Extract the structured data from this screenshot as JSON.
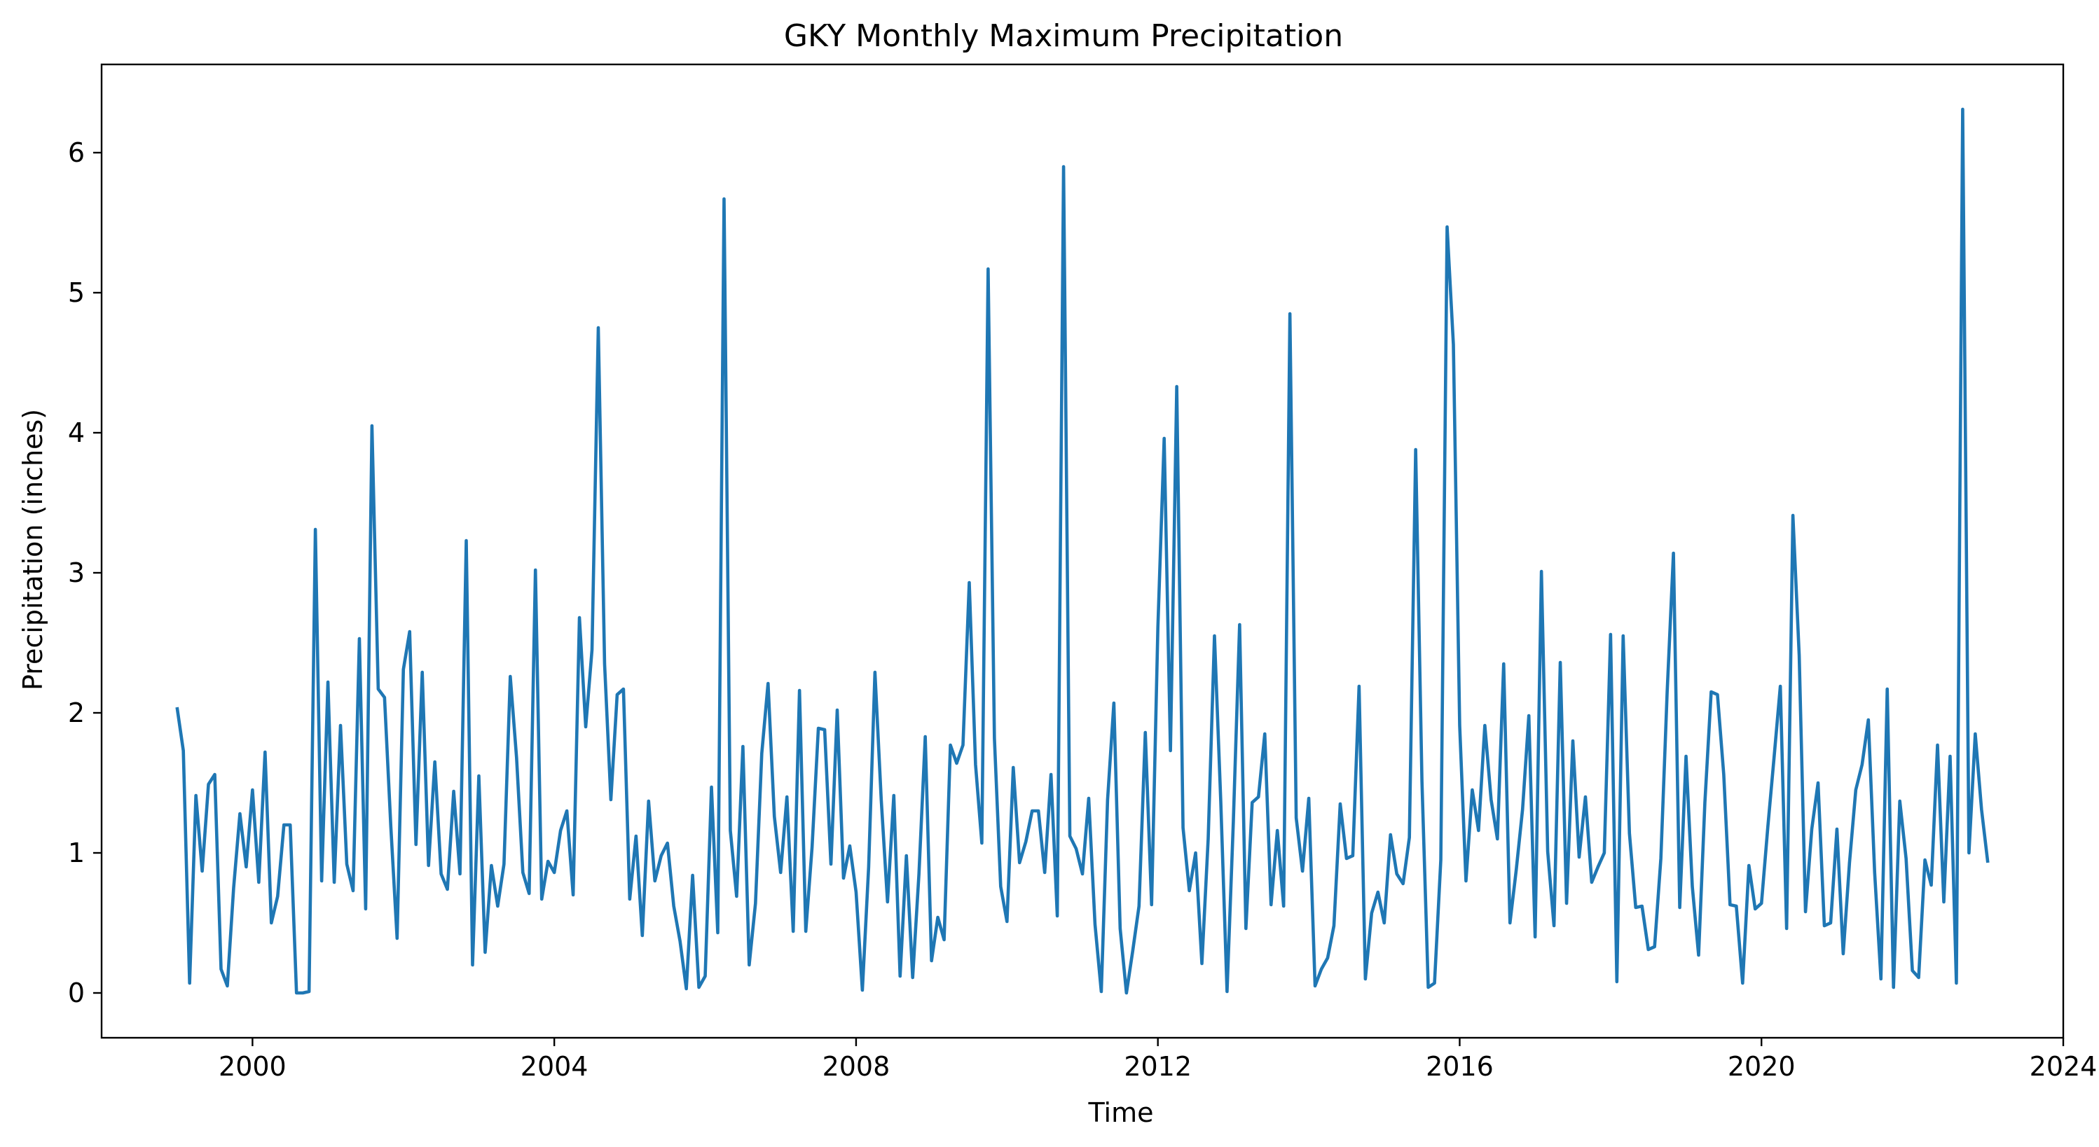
{
  "chart_data": {
    "type": "line",
    "title": "GKY Monthly Maximum Precipitation",
    "xlabel": "Time",
    "ylabel": "Precipitation (inches)",
    "xlim": [
      1998.0,
      2024.0
    ],
    "ylim": [
      -0.32,
      6.63
    ],
    "x_ticks": [
      2000,
      2004,
      2008,
      2012,
      2016,
      2020,
      2024
    ],
    "y_ticks": [
      0,
      1,
      2,
      3,
      4,
      5,
      6
    ],
    "grid": false,
    "color": "#1f77b4",
    "start": "1999-01",
    "frequency": "monthly",
    "end": "2022-12",
    "series": [
      {
        "values": [
          2.04,
          1.73,
          0.07,
          1.41,
          0.87,
          1.49,
          1.56,
          0.17,
          0.05,
          0.75,
          1.28,
          0.9,
          1.45,
          0.79,
          1.72,
          0.5,
          0.69,
          1.2,
          1.2,
          0.0,
          0.0,
          0.01,
          3.31,
          0.8,
          2.22,
          0.79,
          1.91,
          0.92,
          0.73,
          2.53,
          0.6,
          4.05,
          2.17,
          2.11,
          1.19,
          0.39,
          2.31,
          2.58,
          1.06,
          2.29,
          0.91,
          1.65,
          0.85,
          0.74,
          1.44,
          0.85,
          3.23,
          0.2,
          1.55,
          0.29,
          0.91,
          0.62,
          0.92,
          2.26,
          1.68,
          0.86,
          0.71,
          3.02,
          0.67,
          0.94,
          0.86,
          1.16,
          1.3,
          0.7,
          2.68,
          1.9,
          2.45,
          4.75,
          2.35,
          1.38,
          2.13,
          2.17,
          0.67,
          1.12,
          0.41,
          1.37,
          0.8,
          0.98,
          1.07,
          0.62,
          0.37,
          0.03,
          0.84,
          0.04,
          0.12,
          1.47,
          0.43,
          5.67,
          1.16,
          0.69,
          1.76,
          0.2,
          0.64,
          1.71,
          2.21,
          1.26,
          0.86,
          1.4,
          0.44,
          2.16,
          0.44,
          1.04,
          1.89,
          1.88,
          0.92,
          2.02,
          0.82,
          1.05,
          0.72,
          0.02,
          0.9,
          2.29,
          1.38,
          0.65,
          1.41,
          0.12,
          0.98,
          0.11,
          0.85,
          1.83,
          0.23,
          0.54,
          0.38,
          1.77,
          1.64,
          1.77,
          2.93,
          1.63,
          1.07,
          5.17,
          1.82,
          0.76,
          0.51,
          1.61,
          0.93,
          1.08,
          1.3,
          1.3,
          0.86,
          1.56,
          0.55,
          5.9,
          1.12,
          1.03,
          0.85,
          1.39,
          0.49,
          0.01,
          1.38,
          2.07,
          0.46,
          0.0,
          0.3,
          0.62,
          1.86,
          0.63,
          2.61,
          3.96,
          1.73,
          4.33,
          1.18,
          0.73,
          1.0,
          0.21,
          1.1,
          2.55,
          1.37,
          0.01,
          1.22,
          2.63,
          0.46,
          1.36,
          1.4,
          1.85,
          0.63,
          1.16,
          0.62,
          4.85,
          1.25,
          0.87,
          1.39,
          0.05,
          0.17,
          0.25,
          0.48,
          1.35,
          0.96,
          0.98,
          2.19,
          0.1,
          0.57,
          0.72,
          0.5,
          1.13,
          0.85,
          0.78,
          1.11,
          3.88,
          1.51,
          0.04,
          0.07,
          0.95,
          5.47,
          4.63,
          1.91,
          0.8,
          1.45,
          1.16,
          1.91,
          1.38,
          1.1,
          2.35,
          0.5,
          0.88,
          1.31,
          1.98,
          0.4,
          3.01,
          1.01,
          0.48,
          2.36,
          0.64,
          1.8,
          0.97,
          1.4,
          0.79,
          0.9,
          1.0,
          2.56,
          0.08,
          2.55,
          1.14,
          0.61,
          0.62,
          0.31,
          0.33,
          0.96,
          2.15,
          3.14,
          0.61,
          1.69,
          0.76,
          0.27,
          1.36,
          2.15,
          2.13,
          1.56,
          0.63,
          0.62,
          0.07,
          0.91,
          0.6,
          0.64,
          1.18,
          1.68,
          2.19,
          0.46,
          3.41,
          2.41,
          0.58,
          1.17,
          1.5,
          0.48,
          0.5,
          1.17,
          0.28,
          0.93,
          1.45,
          1.63,
          1.95,
          0.86,
          0.1,
          2.17,
          0.04,
          1.37,
          0.96,
          0.16,
          0.11,
          0.95,
          0.77,
          1.77,
          0.65,
          1.69,
          0.07,
          6.31,
          1.0,
          1.85,
          1.31,
          0.93
        ]
      }
    ]
  }
}
